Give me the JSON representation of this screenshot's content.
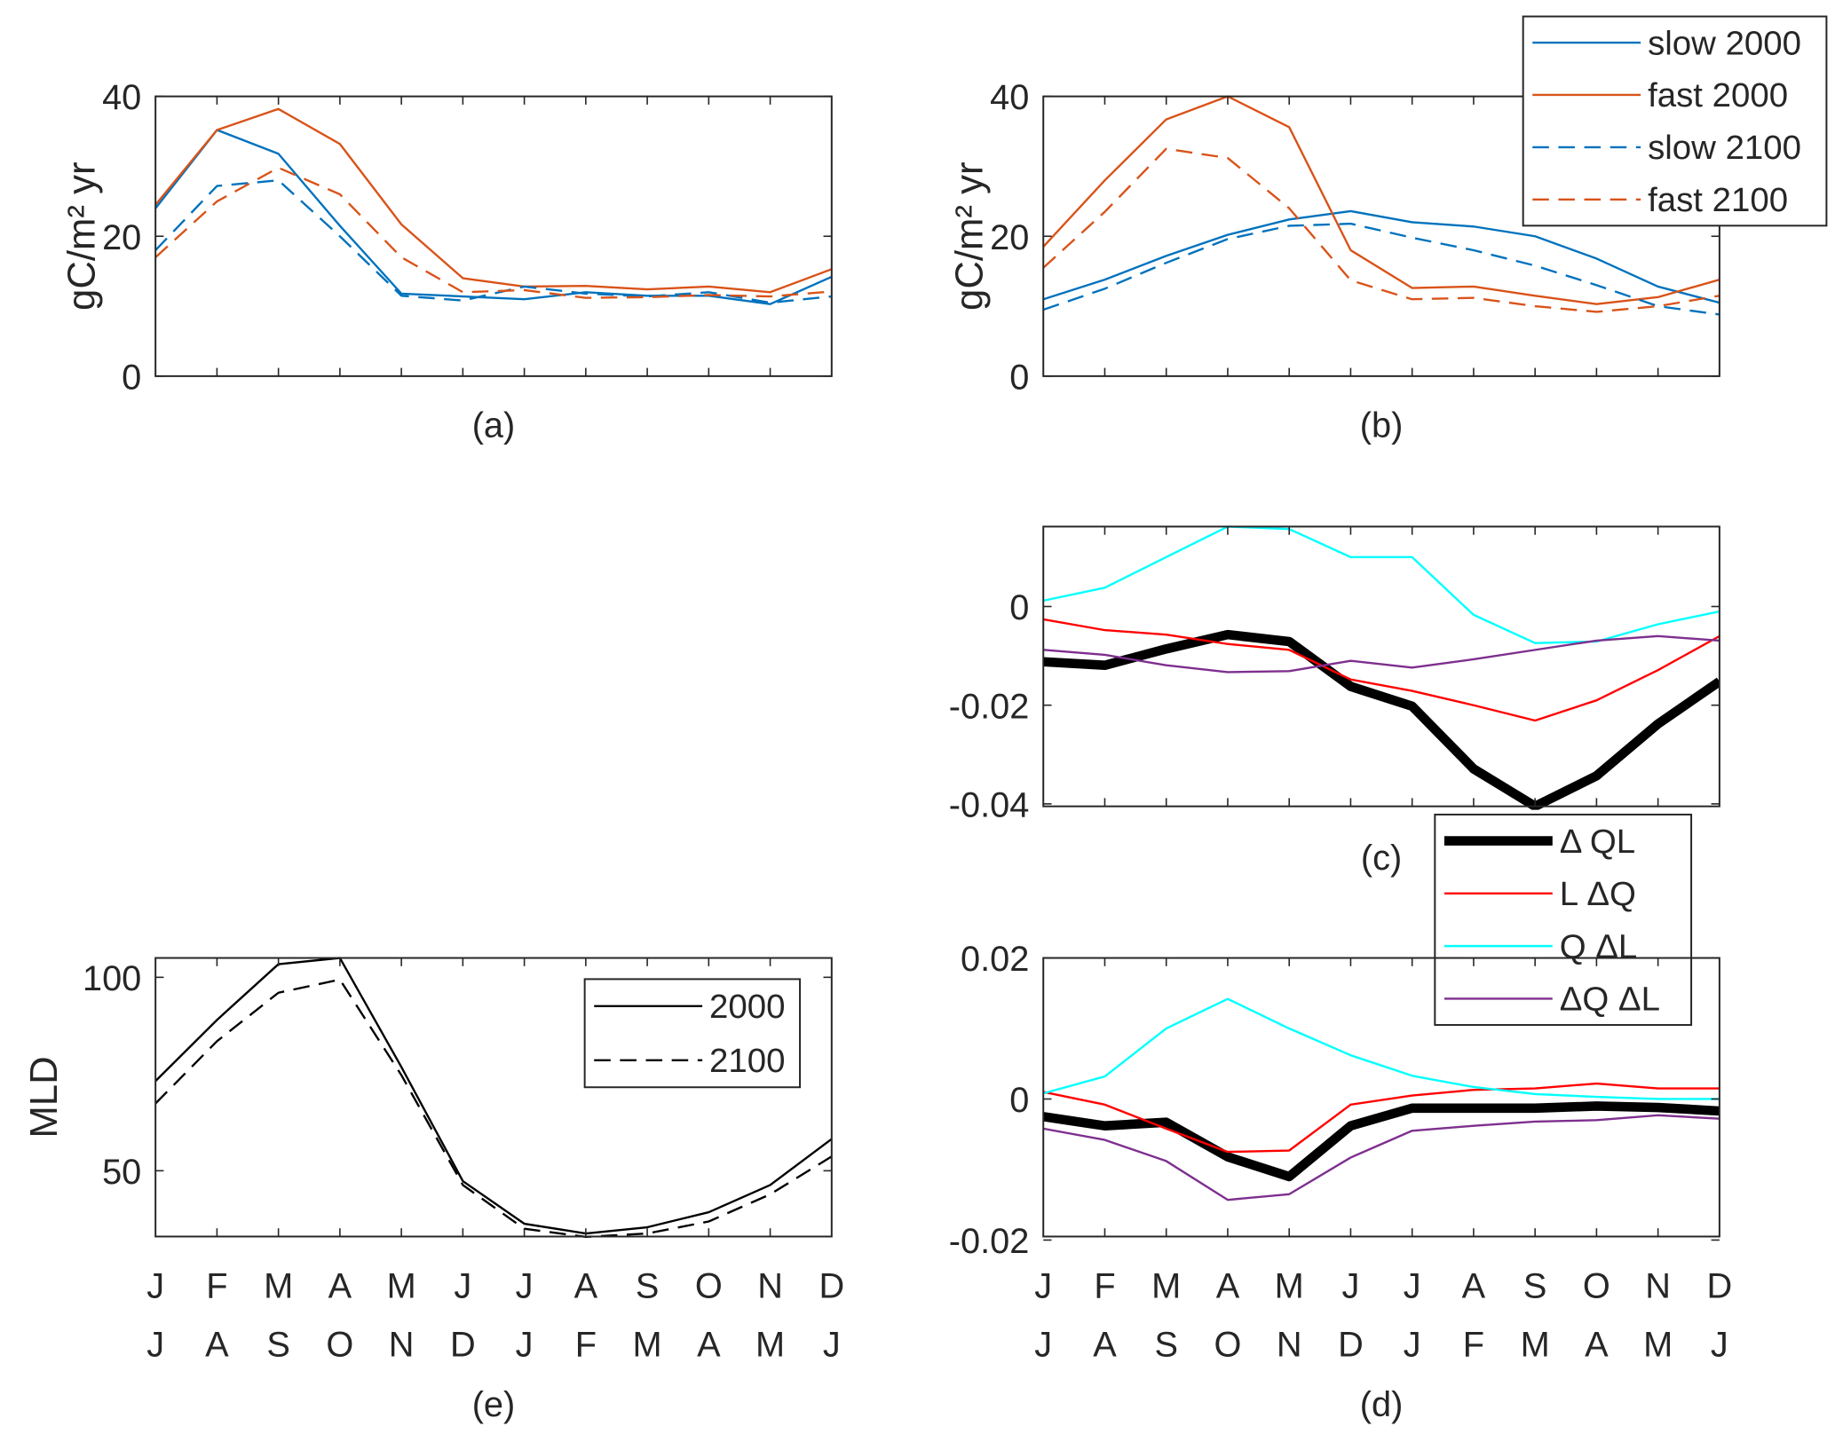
{
  "chart_data": [
    {
      "panel": "(a)",
      "type": "line",
      "ylabel": "gC/m² yr",
      "ylim": [
        0,
        40
      ],
      "yticks": [
        0,
        20,
        40
      ],
      "grid": false,
      "series": [
        {
          "name": "slow 2000",
          "color": "#0072BD",
          "dash": "solid",
          "values": [
            24,
            35.2,
            31.8,
            21.5,
            11.8,
            11.4,
            11,
            12,
            11.5,
            11.5,
            10.3,
            14.2
          ]
        },
        {
          "name": "fast 2000",
          "color": "#D95319",
          "dash": "solid",
          "values": [
            24.5,
            35.2,
            38.2,
            33.2,
            21.7,
            14,
            12.8,
            12.9,
            12.4,
            12.8,
            12,
            15.3
          ]
        },
        {
          "name": "slow 2100",
          "color": "#0072BD",
          "dash": "dashed",
          "values": [
            18,
            27.2,
            28,
            20,
            11.5,
            10.8,
            12.8,
            11.8,
            11.4,
            12,
            10.5,
            11.4
          ]
        },
        {
          "name": "fast 2100",
          "color": "#D95319",
          "dash": "dashed",
          "values": [
            17,
            25,
            29.8,
            26,
            17,
            12,
            12.3,
            11.2,
            11.3,
            11.6,
            11.4,
            12.1
          ]
        }
      ]
    },
    {
      "panel": "(b)",
      "type": "line",
      "ylabel": "gC/m² yr",
      "ylim": [
        0,
        40
      ],
      "yticks": [
        0,
        20,
        40
      ],
      "grid": false,
      "legend": "top-right",
      "series": [
        {
          "name": "slow 2000",
          "color": "#0072BD",
          "dash": "solid",
          "values": [
            11,
            13.8,
            17.2,
            20.2,
            22.4,
            23.6,
            22,
            21.4,
            20,
            16.8,
            12.8,
            10.5
          ]
        },
        {
          "name": "fast 2000",
          "color": "#D95319",
          "dash": "solid",
          "values": [
            18.5,
            28,
            36.7,
            40,
            35.6,
            18,
            12.6,
            12.8,
            11.5,
            10.3,
            11.3,
            13.8
          ]
        },
        {
          "name": "slow 2100",
          "color": "#0072BD",
          "dash": "dashed",
          "values": [
            9.5,
            12.5,
            16.2,
            19.6,
            21.5,
            21.8,
            19.8,
            18,
            15.8,
            13,
            10,
            8.8
          ]
        },
        {
          "name": "fast 2100",
          "color": "#D95319",
          "dash": "dashed",
          "values": [
            15.5,
            23.5,
            32.5,
            31.2,
            24,
            13.7,
            11,
            11.2,
            10,
            9.2,
            10,
            11.5
          ]
        }
      ]
    },
    {
      "panel": "(c)",
      "type": "line",
      "ylim": [
        -0.0405,
        0.0162
      ],
      "yticks": [
        -0.04,
        -0.02,
        0
      ],
      "ytick_labels": [
        "-0.04",
        "-0.02",
        "0"
      ],
      "grid": false,
      "legend": "bottom-right",
      "series": [
        {
          "name": "Δ QL",
          "color": "#000000",
          "width": "thick",
          "values": [
            -0.0112,
            -0.0119,
            -0.0086,
            -0.0057,
            -0.0071,
            -0.0162,
            -0.0202,
            -0.0329,
            -0.0405,
            -0.0343,
            -0.0238,
            -0.0152
          ]
        },
        {
          "name": "L ΔQ",
          "color": "#FF0000",
          "values": [
            -0.0026,
            -0.0048,
            -0.0057,
            -0.0076,
            -0.0088,
            -0.0148,
            -0.0171,
            -0.02,
            -0.0231,
            -0.019,
            -0.0129,
            -0.006
          ]
        },
        {
          "name": "Q ΔL",
          "color": "#00FFFF",
          "values": [
            0.0012,
            0.0038,
            0.01,
            0.0162,
            0.0157,
            0.01,
            0.01,
            -0.0017,
            -0.0074,
            -0.0071,
            -0.0036,
            -0.001
          ]
        },
        {
          "name": "ΔQ ΔL",
          "color": "#7E2F8E",
          "values": [
            -0.0088,
            -0.0098,
            -0.0119,
            -0.0133,
            -0.0131,
            -0.011,
            -0.0124,
            -0.0107,
            -0.0088,
            -0.0069,
            -0.006,
            -0.0069
          ]
        }
      ]
    },
    {
      "panel": "(d)",
      "type": "line",
      "ylim": [
        -0.0195,
        0.02
      ],
      "yticks": [
        -0.02,
        0,
        0.02
      ],
      "ytick_labels": [
        "-0.02",
        "0",
        "0.02"
      ],
      "grid": false,
      "xtick_labels_row1": [
        "J",
        "F",
        "M",
        "A",
        "M",
        "J",
        "J",
        "A",
        "S",
        "O",
        "N",
        "D"
      ],
      "xtick_labels_row2": [
        "J",
        "A",
        "S",
        "O",
        "N",
        "D",
        "J",
        "F",
        "M",
        "A",
        "M",
        "J"
      ],
      "series": [
        {
          "name": "Δ QL",
          "color": "#000000",
          "width": "thick",
          "values": [
            -0.0025,
            -0.0038,
            -0.0033,
            -0.0082,
            -0.011,
            -0.0038,
            -0.0013,
            -0.0013,
            -0.0013,
            -0.001,
            -0.0012,
            -0.0017
          ]
        },
        {
          "name": "L ΔQ",
          "color": "#FF0000",
          "values": [
            0.001,
            -0.0008,
            -0.0042,
            -0.0075,
            -0.0073,
            -0.0008,
            0.0005,
            0.0013,
            0.0015,
            0.0022,
            0.0015,
            0.0015
          ]
        },
        {
          "name": "Q ΔL",
          "color": "#00FFFF",
          "values": [
            0.0008,
            0.0032,
            0.01,
            0.0142,
            0.01,
            0.0062,
            0.0033,
            0.0017,
            0.0007,
            0.0003,
            0,
            0
          ]
        },
        {
          "name": "ΔQ ΔL",
          "color": "#7E2F8E",
          "values": [
            -0.0042,
            -0.0058,
            -0.0088,
            -0.0143,
            -0.0135,
            -0.0083,
            -0.0045,
            -0.0038,
            -0.0032,
            -0.003,
            -0.0023,
            -0.0028
          ]
        }
      ]
    },
    {
      "panel": "(e)",
      "type": "line",
      "ylabel": "MLD",
      "ylim": [
        33,
        105
      ],
      "yticks": [
        50,
        100
      ],
      "grid": false,
      "legend": "top-right",
      "xtick_labels_row1": [
        "J",
        "F",
        "M",
        "A",
        "M",
        "J",
        "J",
        "A",
        "S",
        "O",
        "N",
        "D"
      ],
      "xtick_labels_row2": [
        "J",
        "A",
        "S",
        "O",
        "N",
        "D",
        "J",
        "F",
        "M",
        "A",
        "M",
        "J"
      ],
      "series": [
        {
          "name": "2000",
          "color": "#000000",
          "dash": "solid",
          "values": [
            73.2,
            89,
            103.4,
            105,
            76.8,
            47.3,
            36.3,
            33.8,
            35.4,
            39.3,
            46.3,
            58.2
          ]
        },
        {
          "name": "2100",
          "color": "#000000",
          "dash": "dashed",
          "values": [
            67.4,
            83.5,
            96,
            99.4,
            74.7,
            46.3,
            35,
            32.9,
            33.8,
            36.9,
            43.9,
            53.7
          ]
        }
      ]
    }
  ]
}
